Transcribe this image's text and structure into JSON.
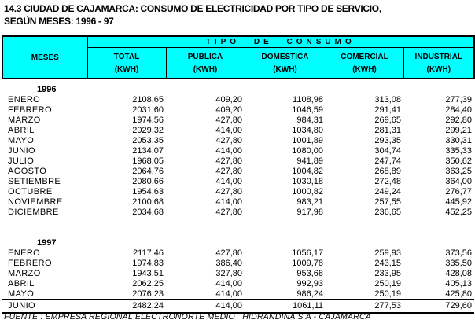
{
  "title": {
    "line1": "14.3  CIUDAD DE CAJAMARCA: CONSUMO DE ELECTRICIDAD POR TIPO DE SERVICIO,",
    "line2": "SEGÚN MESES:  1996 - 97"
  },
  "colors": {
    "header_bg": "#00FFFF",
    "border": "#000000",
    "text": "#000000"
  },
  "table": {
    "meses_label": "MESES",
    "group_header": "TIPO DE CONSUMO",
    "columns": [
      {
        "name": "TOTAL",
        "unit": "(KWH)"
      },
      {
        "name": "PUBLICA",
        "unit": "(KWH)"
      },
      {
        "name": "DOMESTICA",
        "unit": "(KWH)"
      },
      {
        "name": "COMERCIAL",
        "unit": "(KWH)"
      },
      {
        "name": "INDUSTRIAL",
        "unit": "(KWH)"
      }
    ],
    "sections": [
      {
        "year": "1996",
        "rows": [
          {
            "month": "ENERO",
            "values": [
              "2108,65",
              "409,20",
              "1108,98",
              "313,08",
              "277,39"
            ]
          },
          {
            "month": "FEBRERO",
            "values": [
              "2031,60",
              "409,20",
              "1046,59",
              "291,41",
              "284,40"
            ]
          },
          {
            "month": "MARZO",
            "values": [
              "1974,56",
              "427,80",
              "984,31",
              "269,65",
              "292,80"
            ]
          },
          {
            "month": "ABRIL",
            "values": [
              "2029,32",
              "414,00",
              "1034,80",
              "281,31",
              "299,21"
            ]
          },
          {
            "month": "MAYO",
            "values": [
              "2053,35",
              "427,80",
              "1001,89",
              "293,35",
              "330,31"
            ]
          },
          {
            "month": "JUNIO",
            "values": [
              "2134,07",
              "414,00",
              "1080,00",
              "304,74",
              "335,33"
            ]
          },
          {
            "month": "JULIO",
            "values": [
              "1968,05",
              "427,80",
              "941,89",
              "247,74",
              "350,62"
            ]
          },
          {
            "month": "AGOSTO",
            "values": [
              "2064,76",
              "427,80",
              "1004,82",
              "268,89",
              "363,25"
            ]
          },
          {
            "month": "SETIEMBRE",
            "values": [
              "2080,66",
              "414,00",
              "1030,18",
              "272,48",
              "364,00"
            ]
          },
          {
            "month": "OCTUBRE",
            "values": [
              "1954,63",
              "427,80",
              "1000,82",
              "249,24",
              "276,77"
            ]
          },
          {
            "month": "NOVIEMBRE",
            "values": [
              "2100,68",
              "414,00",
              "983,21",
              "257,55",
              "445,92"
            ]
          },
          {
            "month": "DICIEMBRE",
            "values": [
              "2034,68",
              "427,80",
              "917,98",
              "236,65",
              "452,25"
            ]
          }
        ]
      },
      {
        "year": "1997",
        "rows": [
          {
            "month": "ENERO",
            "values": [
              "2117,46",
              "427,80",
              "1056,17",
              "259,93",
              "373,56"
            ]
          },
          {
            "month": "FEBRERO",
            "values": [
              "1974,83",
              "386,40",
              "1009,78",
              "243,15",
              "335,50"
            ]
          },
          {
            "month": "MARZO",
            "values": [
              "1943,51",
              "327,80",
              "953,68",
              "233,95",
              "428,08"
            ]
          },
          {
            "month": "ABRIL",
            "values": [
              "2062,25",
              "414,00",
              "992,93",
              "250,19",
              "405,13"
            ]
          },
          {
            "month": "MAYO",
            "values": [
              "2076,23",
              "414,00",
              "986,24",
              "250,19",
              "425,80"
            ]
          },
          {
            "month": "JUNIO",
            "values": [
              "2482,24",
              "414,00",
              "1061,11",
              "277,53",
              "729,60"
            ]
          }
        ]
      }
    ]
  },
  "footer": "FUENTE : EMPRESA REGIONAL ELECTRONORTE MEDIO   HIDRANDINA S.A - CAJAMARCA"
}
